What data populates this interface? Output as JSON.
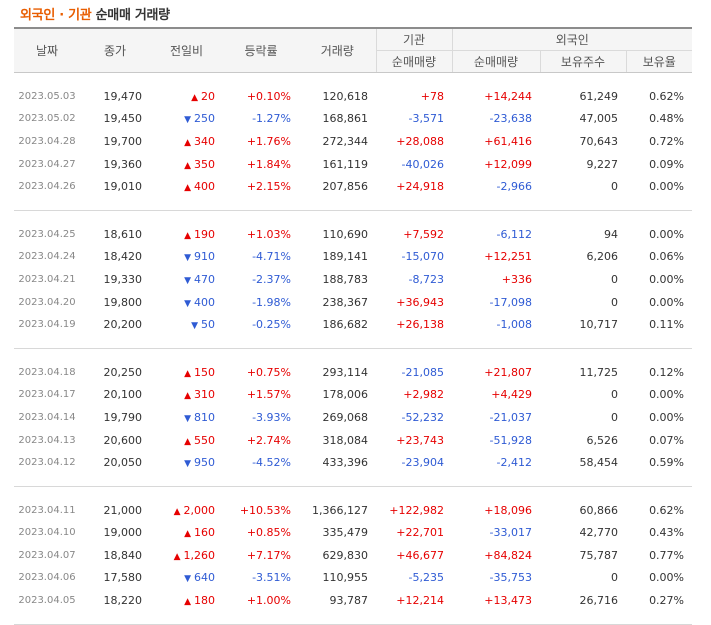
{
  "title": {
    "part1": "외국인 · 기관",
    "part2": "순매매 거래량"
  },
  "headers": {
    "date": "날짜",
    "close": "종가",
    "diff": "전일비",
    "rate": "등락률",
    "volume": "거래량",
    "inst_group": "기관",
    "foreign_group": "외국인",
    "inst_net": "순매매량",
    "foreign_net": "순매매량",
    "holdings": "보유주수",
    "ratio": "보유율"
  },
  "colors": {
    "up": "#e60000",
    "down": "#2f5bd4",
    "accent": "#e85d00"
  },
  "groups": [
    [
      {
        "date": "2023.05.03",
        "close": "19,470",
        "dir": "up",
        "diff": "20",
        "rate": "+0.10%",
        "volume": "120,618",
        "inst": "+78",
        "foreign": "+14,244",
        "holdings": "61,249",
        "ratio": "0.62%"
      },
      {
        "date": "2023.05.02",
        "close": "19,450",
        "dir": "down",
        "diff": "250",
        "rate": "-1.27%",
        "volume": "168,861",
        "inst": "-3,571",
        "foreign": "-23,638",
        "holdings": "47,005",
        "ratio": "0.48%"
      },
      {
        "date": "2023.04.28",
        "close": "19,700",
        "dir": "up",
        "diff": "340",
        "rate": "+1.76%",
        "volume": "272,344",
        "inst": "+28,088",
        "foreign": "+61,416",
        "holdings": "70,643",
        "ratio": "0.72%"
      },
      {
        "date": "2023.04.27",
        "close": "19,360",
        "dir": "up",
        "diff": "350",
        "rate": "+1.84%",
        "volume": "161,119",
        "inst": "-40,026",
        "foreign": "+12,099",
        "holdings": "9,227",
        "ratio": "0.09%"
      },
      {
        "date": "2023.04.26",
        "close": "19,010",
        "dir": "up",
        "diff": "400",
        "rate": "+2.15%",
        "volume": "207,856",
        "inst": "+24,918",
        "foreign": "-2,966",
        "holdings": "0",
        "ratio": "0.00%"
      }
    ],
    [
      {
        "date": "2023.04.25",
        "close": "18,610",
        "dir": "up",
        "diff": "190",
        "rate": "+1.03%",
        "volume": "110,690",
        "inst": "+7,592",
        "foreign": "-6,112",
        "holdings": "94",
        "ratio": "0.00%"
      },
      {
        "date": "2023.04.24",
        "close": "18,420",
        "dir": "down",
        "diff": "910",
        "rate": "-4.71%",
        "volume": "189,141",
        "inst": "-15,070",
        "foreign": "+12,251",
        "holdings": "6,206",
        "ratio": "0.06%"
      },
      {
        "date": "2023.04.21",
        "close": "19,330",
        "dir": "down",
        "diff": "470",
        "rate": "-2.37%",
        "volume": "188,783",
        "inst": "-8,723",
        "foreign": "+336",
        "holdings": "0",
        "ratio": "0.00%"
      },
      {
        "date": "2023.04.20",
        "close": "19,800",
        "dir": "down",
        "diff": "400",
        "rate": "-1.98%",
        "volume": "238,367",
        "inst": "+36,943",
        "foreign": "-17,098",
        "holdings": "0",
        "ratio": "0.00%"
      },
      {
        "date": "2023.04.19",
        "close": "20,200",
        "dir": "down",
        "diff": "50",
        "rate": "-0.25%",
        "volume": "186,682",
        "inst": "+26,138",
        "foreign": "-1,008",
        "holdings": "10,717",
        "ratio": "0.11%"
      }
    ],
    [
      {
        "date": "2023.04.18",
        "close": "20,250",
        "dir": "up",
        "diff": "150",
        "rate": "+0.75%",
        "volume": "293,114",
        "inst": "-21,085",
        "foreign": "+21,807",
        "holdings": "11,725",
        "ratio": "0.12%"
      },
      {
        "date": "2023.04.17",
        "close": "20,100",
        "dir": "up",
        "diff": "310",
        "rate": "+1.57%",
        "volume": "178,006",
        "inst": "+2,982",
        "foreign": "+4,429",
        "holdings": "0",
        "ratio": "0.00%"
      },
      {
        "date": "2023.04.14",
        "close": "19,790",
        "dir": "down",
        "diff": "810",
        "rate": "-3.93%",
        "volume": "269,068",
        "inst": "-52,232",
        "foreign": "-21,037",
        "holdings": "0",
        "ratio": "0.00%"
      },
      {
        "date": "2023.04.13",
        "close": "20,600",
        "dir": "up",
        "diff": "550",
        "rate": "+2.74%",
        "volume": "318,084",
        "inst": "+23,743",
        "foreign": "-51,928",
        "holdings": "6,526",
        "ratio": "0.07%"
      },
      {
        "date": "2023.04.12",
        "close": "20,050",
        "dir": "down",
        "diff": "950",
        "rate": "-4.52%",
        "volume": "433,396",
        "inst": "-23,904",
        "foreign": "-2,412",
        "holdings": "58,454",
        "ratio": "0.59%"
      }
    ],
    [
      {
        "date": "2023.04.11",
        "close": "21,000",
        "dir": "up",
        "diff": "2,000",
        "rate": "+10.53%",
        "volume": "1,366,127",
        "inst": "+122,982",
        "foreign": "+18,096",
        "holdings": "60,866",
        "ratio": "0.62%"
      },
      {
        "date": "2023.04.10",
        "close": "19,000",
        "dir": "up",
        "diff": "160",
        "rate": "+0.85%",
        "volume": "335,479",
        "inst": "+22,701",
        "foreign": "-33,017",
        "holdings": "42,770",
        "ratio": "0.43%"
      },
      {
        "date": "2023.04.07",
        "close": "18,840",
        "dir": "up",
        "diff": "1,260",
        "rate": "+7.17%",
        "volume": "629,830",
        "inst": "+46,677",
        "foreign": "+84,824",
        "holdings": "75,787",
        "ratio": "0.77%"
      },
      {
        "date": "2023.04.06",
        "close": "17,580",
        "dir": "down",
        "diff": "640",
        "rate": "-3.51%",
        "volume": "110,955",
        "inst": "-5,235",
        "foreign": "-35,753",
        "holdings": "0",
        "ratio": "0.00%"
      },
      {
        "date": "2023.04.05",
        "close": "18,220",
        "dir": "up",
        "diff": "180",
        "rate": "+1.00%",
        "volume": "93,787",
        "inst": "+12,214",
        "foreign": "+13,473",
        "holdings": "26,716",
        "ratio": "0.27%"
      }
    ]
  ]
}
